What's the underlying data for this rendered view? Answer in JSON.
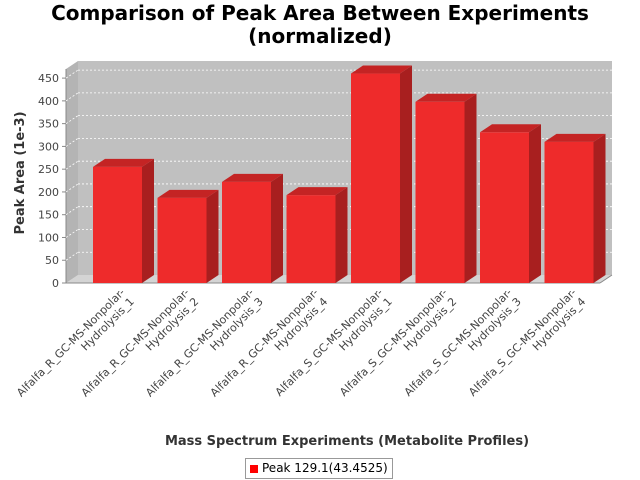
{
  "chart_data": {
    "type": "bar",
    "title": "Comparison of Peak Area Between Experiments",
    "subtitle": "(normalized)",
    "xlabel": "Mass Spectrum Experiments (Metabolite Profiles)",
    "ylabel": "Peak Area (1e-3)",
    "categories": [
      [
        "Alfalfa_R_GC-MS-Nonpolar-",
        "Hydrolysis_1"
      ],
      [
        "Alfalfa_R_GC-MS-Nonpolar-",
        "Hydrolysis_2"
      ],
      [
        "Alfalfa_R_GC-MS-Nonpolar-",
        "Hydrolysis_3"
      ],
      [
        "Alfalfa_R_GC-MS-Nonpolar-",
        "Hydrolysis_4"
      ],
      [
        "Alfalfa_S_GC-MS-Nonpolar-",
        "Hydrolysis_1"
      ],
      [
        "Alfalfa_S_GC-MS-Nonpolar-",
        "Hydrolysis_2"
      ],
      [
        "Alfalfa_S_GC-MS-Nonpolar-",
        "Hydrolysis_3"
      ],
      [
        "Alfalfa_S_GC-MS-Nonpolar-",
        "Hydrolysis_4"
      ]
    ],
    "series": [
      {
        "name": "Peak 129.1(43.4525)",
        "values": [
          255,
          187,
          222,
          193,
          460,
          398,
          331,
          310
        ]
      }
    ],
    "ylim": [
      0,
      470
    ],
    "yticks": [
      0,
      50,
      100,
      150,
      200,
      250,
      300,
      350,
      400,
      450
    ],
    "grid": true,
    "legend_position": "bottom",
    "colors": {
      "bar_front": "#ee2b2b",
      "bar_side": "#a81f1f",
      "bar_top": "#c42424",
      "plot_back": "#c0c0c0",
      "plot_floor": "#d4d4d4",
      "grid": "#ffffff",
      "legend_swatch": "#ff0000"
    }
  }
}
